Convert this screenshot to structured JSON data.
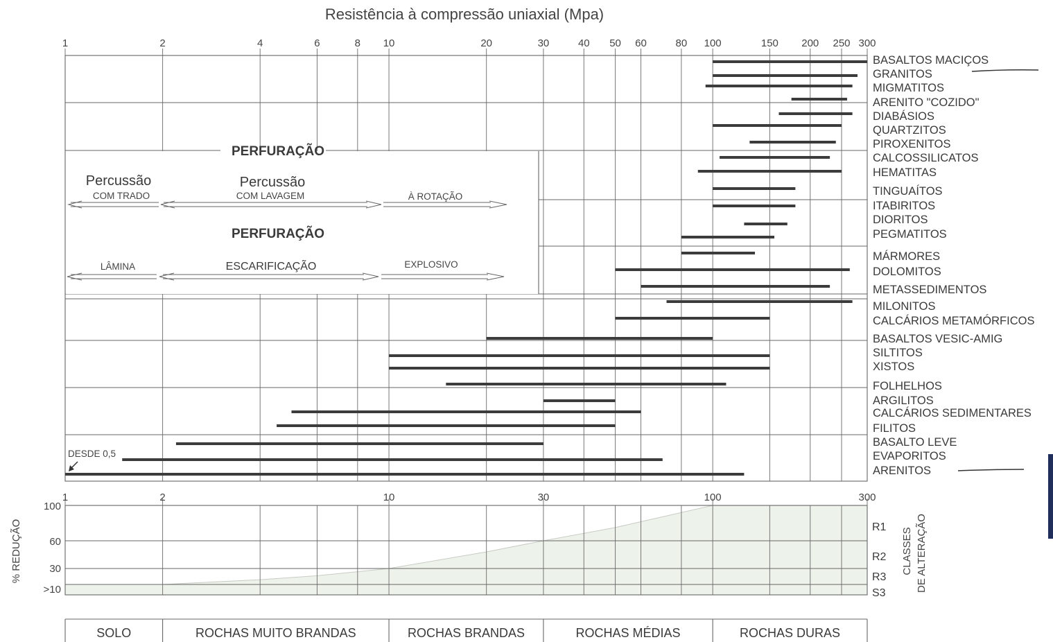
{
  "chart_data": {
    "type": "bar",
    "title": "Resistência à compressão uniaxial (Mpa)",
    "x_scale": "log",
    "xlim": [
      1,
      300
    ],
    "top_ticks": [
      1,
      2,
      4,
      6,
      8,
      10,
      20,
      30,
      40,
      50,
      60,
      80,
      100,
      150,
      200,
      250,
      300
    ],
    "bottom_ticks": [
      1,
      2,
      10,
      30,
      100,
      300
    ],
    "rocks": [
      {
        "name": "BASALTOS MACIÇOS",
        "min": 100,
        "max": 300
      },
      {
        "name": "GRANITOS",
        "min": 100,
        "max": 280
      },
      {
        "name": "MIGMATITOS",
        "min": 95,
        "max": 270
      },
      {
        "name": "ARENITO \"COZIDO\"",
        "min": 175,
        "max": 260
      },
      {
        "name": "DIABÁSIOS",
        "min": 160,
        "max": 270
      },
      {
        "name": "QUARTZITOS",
        "min": 100,
        "max": 250
      },
      {
        "name": "PIROXENITOS",
        "min": 130,
        "max": 240
      },
      {
        "name": "CALCOSSILICATOS",
        "min": 105,
        "max": 230
      },
      {
        "name": "HEMATITAS",
        "min": 90,
        "max": 250
      },
      {
        "name": "TINGUAÍTOS",
        "min": 100,
        "max": 180
      },
      {
        "name": "ITABIRITOS",
        "min": 100,
        "max": 180
      },
      {
        "name": "DIORITOS",
        "min": 125,
        "max": 170
      },
      {
        "name": "PEGMATITOS",
        "min": 80,
        "max": 155
      },
      {
        "name": "MÁRMORES",
        "min": 80,
        "max": 135
      },
      {
        "name": "DOLOMITOS",
        "min": 50,
        "max": 265
      },
      {
        "name": "METASSEDIMENTOS",
        "min": 60,
        "max": 230
      },
      {
        "name": "MILONITOS",
        "min": 72,
        "max": 270
      },
      {
        "name": "CALCÁRIOS METAMÓRFICOS",
        "min": 50,
        "max": 150
      },
      {
        "name": "BASALTOS VESIC-AMIG",
        "min": 20,
        "max": 100
      },
      {
        "name": "SILTITOS",
        "min": 10,
        "max": 150
      },
      {
        "name": "XISTOS",
        "min": 10,
        "max": 150
      },
      {
        "name": "FOLHELHOS",
        "min": 15,
        "max": 110
      },
      {
        "name": "ARGILITOS",
        "min": 30,
        "max": 50
      },
      {
        "name": "CALCÁRIOS SEDIMENTARES",
        "min": 5,
        "max": 60
      },
      {
        "name": "FILITOS",
        "min": 4.5,
        "max": 50
      },
      {
        "name": "BASALTO LEVE",
        "min": 2.2,
        "max": 30
      },
      {
        "name": "EVAPORITOS",
        "min": 1.5,
        "max": 70
      },
      {
        "name": "ARENITOS",
        "min": 1,
        "max": 125
      }
    ],
    "reduction_axis_label": "% REDUÇÃO",
    "reduction_ticks": [
      "100",
      "60",
      "30",
      ">10"
    ],
    "alteration_label_1": "CLASSES",
    "alteration_label_2": "DE ALTERAÇÃO",
    "alteration_classes": [
      "R1",
      "R2",
      "R3",
      "S3"
    ],
    "categories": [
      {
        "label": "SOLO",
        "from": 1,
        "to": 2
      },
      {
        "label": "ROCHAS MUITO BRANDAS",
        "from": 2,
        "to": 10
      },
      {
        "label": "ROCHAS BRANDAS",
        "from": 10,
        "to": 30
      },
      {
        "label": "ROCHAS MÉDIAS",
        "from": 30,
        "to": 100
      },
      {
        "label": "ROCHAS DURAS",
        "from": 100,
        "to": 300
      }
    ],
    "drilling": {
      "title": "PERFURAÇÃO",
      "percussion_1": "Percussão",
      "percussion_1_sub": "COM TRADO",
      "percussion_2": "Percussão",
      "percussion_2_sub": "COM LAVAGEM",
      "rotation": "À ROTAÇÃO",
      "blade": "LÂMINA",
      "ripping": "ESCARIFICAÇÃO",
      "explosive": "EXPLOSIVO",
      "note": "DESDE 0,5"
    },
    "fill_color": "#edf2ea",
    "bar_color": "#3c3c3c"
  }
}
